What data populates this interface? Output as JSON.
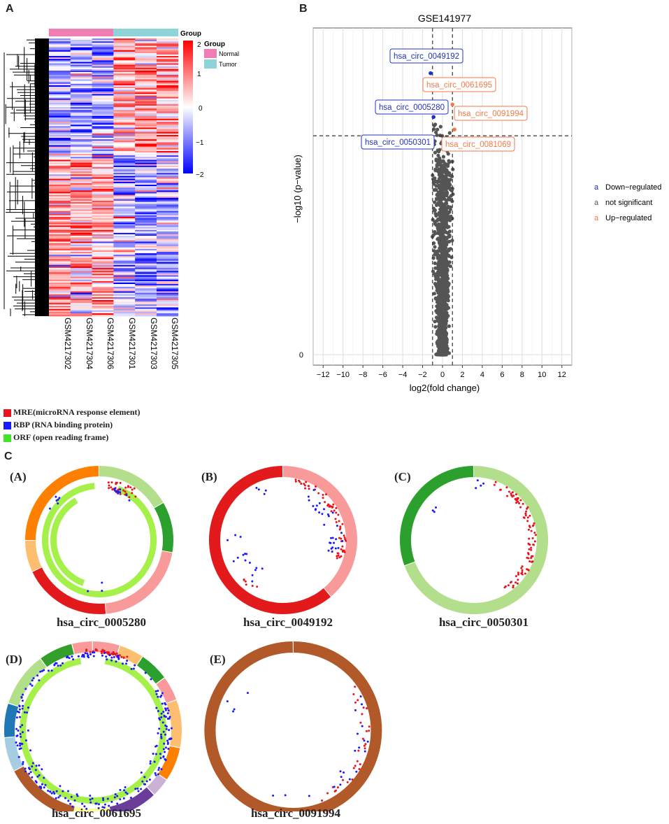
{
  "panels": {
    "a": "A",
    "b": "B",
    "c": "C"
  },
  "heatmap": {
    "group_title": "Group",
    "legend_title": "Group",
    "groups": [
      {
        "name": "Normal",
        "color": "#f07db4"
      },
      {
        "name": "Tumor",
        "color": "#8dd3d8"
      }
    ],
    "samples": [
      "GSM4217302",
      "GSM4217304",
      "GSM4217306",
      "GSM4217301",
      "GSM4217303",
      "GSM4217305"
    ],
    "scale_ticks": [
      "2",
      "1",
      "0",
      "−1",
      "−2"
    ],
    "scale_colors": {
      "high": "#ff0000",
      "mid": "#ffffff",
      "low": "#0000ff"
    }
  },
  "chart_data": [
    {
      "type": "scatter",
      "title": "GSE141977",
      "xlabel": "log2(fold change)",
      "ylabel": "−log10 (p−value)",
      "xlim": [
        -13,
        13
      ],
      "x_ticks": [
        "−12",
        "−10",
        "−8",
        "−6",
        "−4",
        "−2",
        "0",
        "2",
        "4",
        "6",
        "8",
        "10",
        "12"
      ],
      "y_ticks": [
        "0"
      ],
      "thresholds": {
        "x": [
          -1,
          1
        ],
        "y_fraction_of_range": 0.7
      },
      "legend": [
        {
          "symbol": "a",
          "label": "Down−regulated",
          "color": "#2222cc"
        },
        {
          "symbol": "a",
          "label": "not significant",
          "color": "#555555"
        },
        {
          "symbol": "a",
          "label": "Up−regulated",
          "color": "#f07a4a"
        }
      ],
      "labeled_points": [
        {
          "label": "hsa_circ_0049192",
          "x": -1.2,
          "y_rel": 0.9,
          "class": "down"
        },
        {
          "label": "hsa_circ_0061695",
          "x": 1.0,
          "y_rel": 0.8,
          "class": "up"
        },
        {
          "label": "hsa_circ_0005280",
          "x": -0.9,
          "y_rel": 0.76,
          "class": "down"
        },
        {
          "label": "hsa_circ_0091994",
          "x": 1.2,
          "y_rel": 0.72,
          "class": "up"
        },
        {
          "label": "hsa_circ_0050301",
          "x": -1.05,
          "y_rel": 0.68,
          "class": "down"
        },
        {
          "label": "hsa_circ_0081069",
          "x": 1.1,
          "y_rel": 0.68,
          "class": "up"
        }
      ]
    }
  ],
  "legend_c": [
    {
      "label": "MRE(microRNA response element)",
      "color": "#e8141b"
    },
    {
      "label": "RBP (RNA binding protein)",
      "color": "#1a1aff"
    },
    {
      "label": "ORF (open reading frame)",
      "color": "#44e22a"
    }
  ],
  "circos": [
    {
      "letter": "(A)",
      "name": "hsa_circ_0005280"
    },
    {
      "letter": "(B)",
      "name": "hsa_circ_0049192"
    },
    {
      "letter": "(C)",
      "name": "hsa_circ_0050301"
    },
    {
      "letter": "(D)",
      "name": "hsa_circ_0061695"
    },
    {
      "letter": "(E)",
      "name": "hsa_circ_0091994"
    }
  ]
}
